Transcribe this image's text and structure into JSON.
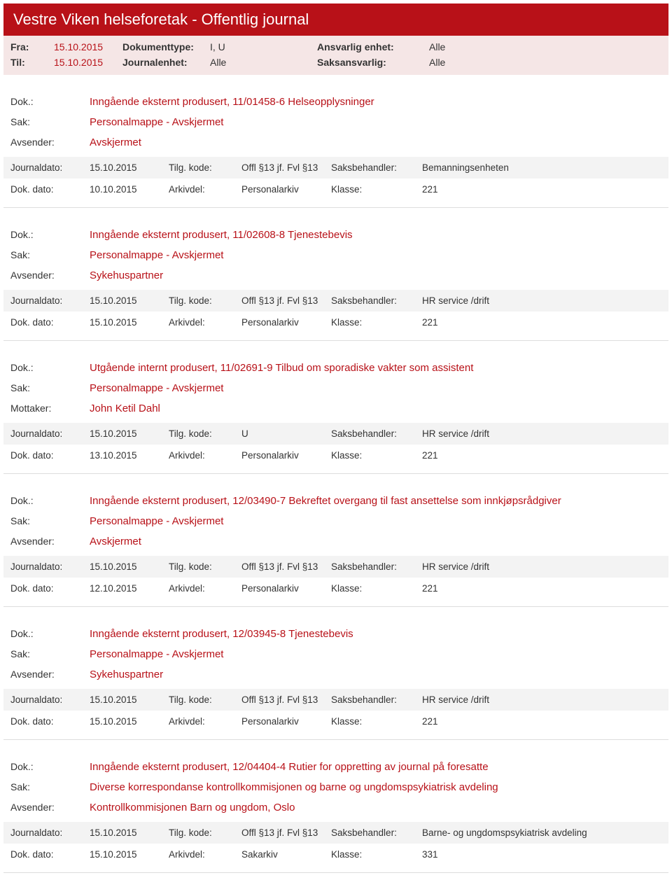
{
  "header": {
    "title": "Vestre Viken helseforetak - Offentlig journal",
    "bg": "#b81118"
  },
  "filters": {
    "row1": {
      "l1": "Fra:",
      "v1": "15.10.2015",
      "l2": "Dokumenttype:",
      "v2": "I, U",
      "l3": "Ansvarlig enhet:",
      "v3": "Alle"
    },
    "row2": {
      "l1": "Til:",
      "v1": "15.10.2015",
      "l2": "Journalenhet:",
      "v2": "Alle",
      "l3": "Saksansvarlig:",
      "v3": "Alle"
    }
  },
  "labels": {
    "dok": "Dok.:",
    "sak": "Sak:",
    "avsender": "Avsender:",
    "mottaker": "Mottaker:",
    "journaldato": "Journaldato:",
    "dokdato": "Dok. dato:",
    "tilgkode": "Tilg. kode:",
    "arkivdel": "Arkivdel:",
    "saksbehandler": "Saksbehandler:",
    "klasse": "Klasse:"
  },
  "entries": [
    {
      "dok": "Inngående eksternt produsert, 11/01458-6 Helseopplysninger",
      "sak": "Personalmappe - Avskjermet",
      "partyLabel": "Avsender:",
      "party": "Avskjermet",
      "journaldato": "15.10.2015",
      "tilgkode": "Offl §13 jf. Fvl §13",
      "saksbehandler": "Bemanningsenheten",
      "dokdato": "10.10.2015",
      "arkivdel": "Personalarkiv",
      "klasse": "221"
    },
    {
      "dok": "Inngående eksternt produsert, 11/02608-8 Tjenestebevis",
      "sak": "Personalmappe - Avskjermet",
      "partyLabel": "Avsender:",
      "party": "Sykehuspartner",
      "journaldato": "15.10.2015",
      "tilgkode": "Offl §13 jf. Fvl §13",
      "saksbehandler": "HR service /drift",
      "dokdato": "15.10.2015",
      "arkivdel": "Personalarkiv",
      "klasse": "221"
    },
    {
      "dok": "Utgående internt produsert, 11/02691-9 Tilbud om sporadiske vakter som assistent",
      "sak": "Personalmappe - Avskjermet",
      "partyLabel": "Mottaker:",
      "party": "John Ketil Dahl",
      "journaldato": "15.10.2015",
      "tilgkode": "U",
      "saksbehandler": "HR service /drift",
      "dokdato": "13.10.2015",
      "arkivdel": "Personalarkiv",
      "klasse": "221"
    },
    {
      "dok": "Inngående eksternt produsert, 12/03490-7 Bekreftet overgang til fast ansettelse som innkjøpsrådgiver",
      "sak": "Personalmappe - Avskjermet",
      "partyLabel": "Avsender:",
      "party": "Avskjermet",
      "journaldato": "15.10.2015",
      "tilgkode": "Offl §13 jf. Fvl §13",
      "saksbehandler": "HR service /drift",
      "dokdato": "12.10.2015",
      "arkivdel": "Personalarkiv",
      "klasse": "221"
    },
    {
      "dok": "Inngående eksternt produsert, 12/03945-8 Tjenestebevis",
      "sak": "Personalmappe - Avskjermet",
      "partyLabel": "Avsender:",
      "party": "Sykehuspartner",
      "journaldato": "15.10.2015",
      "tilgkode": "Offl §13 jf. Fvl §13",
      "saksbehandler": "HR service /drift",
      "dokdato": "15.10.2015",
      "arkivdel": "Personalarkiv",
      "klasse": "221"
    },
    {
      "dok": "Inngående eksternt produsert, 12/04404-4 Rutier for oppretting av journal på foresatte",
      "sak": "Diverse korrespondanse kontrollkommisjonen og barne og ungdomspsykiatrisk avdeling",
      "partyLabel": "Avsender:",
      "party": "Kontrollkommisjonen Barn og ungdom, Oslo",
      "journaldato": "15.10.2015",
      "tilgkode": "Offl §13 jf. Fvl §13",
      "saksbehandler": "Barne- og ungdomspsykiatrisk avdeling",
      "dokdato": "15.10.2015",
      "arkivdel": "Sakarkiv",
      "klasse": "331"
    }
  ]
}
